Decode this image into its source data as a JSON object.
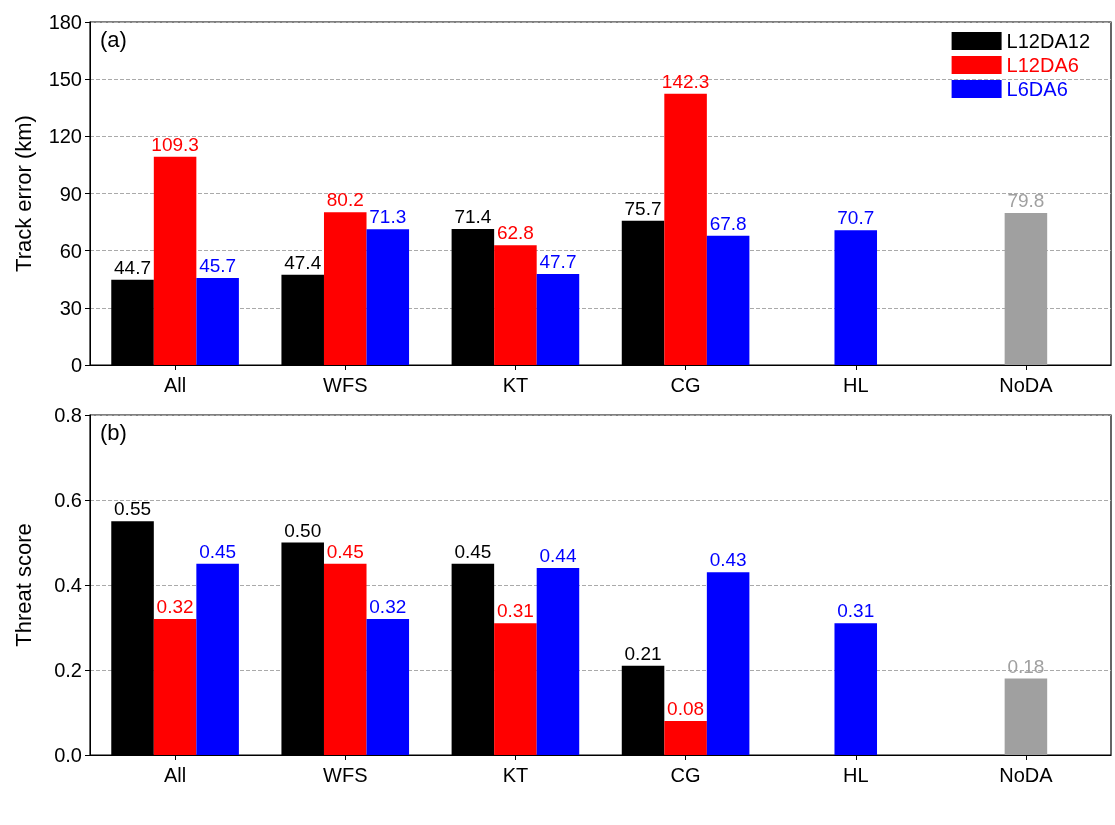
{
  "chart_data": [
    {
      "type": "bar",
      "ylabel": "Track error (km)",
      "annotations": [
        "(a)"
      ],
      "categories": [
        "All",
        "WFS",
        "KT",
        "CG",
        "HL",
        "NoDA"
      ],
      "series": [
        {
          "name": "L12DA12",
          "color": "#000000",
          "values": [
            44.7,
            47.4,
            71.4,
            75.7,
            null,
            null
          ]
        },
        {
          "name": "L12DA6",
          "color": "#ff0000",
          "values": [
            109.3,
            80.2,
            62.8,
            142.3,
            null,
            null
          ]
        },
        {
          "name": "L6DA6",
          "color": "#0000ff",
          "values": [
            45.7,
            71.3,
            47.7,
            67.8,
            70.7,
            null
          ]
        },
        {
          "color": "#a0a0a0",
          "values": [
            null,
            null,
            null,
            null,
            null,
            79.8
          ]
        }
      ],
      "ylim": [
        0,
        180
      ],
      "yticks": [
        0,
        30,
        60,
        90,
        120,
        150,
        180
      ],
      "grid": "y",
      "legend": "top right",
      "data_labels": true
    },
    {
      "type": "bar",
      "ylabel": "Threat score",
      "annotations": [
        "(b)"
      ],
      "categories": [
        "All",
        "WFS",
        "KT",
        "CG",
        "HL",
        "NoDA"
      ],
      "series": [
        {
          "color": "#000000",
          "values": [
            0.55,
            0.5,
            0.45,
            0.21,
            null,
            null
          ],
          "value_labels": [
            "0.55",
            "0.50",
            "0.45",
            "0.21",
            null,
            null
          ]
        },
        {
          "color": "#ff0000",
          "values": [
            0.32,
            0.45,
            0.31,
            0.08,
            null,
            null
          ],
          "value_labels": [
            "0.32",
            "0.45",
            "0.31",
            "0.08",
            null,
            null
          ]
        },
        {
          "color": "#0000ff",
          "values": [
            0.45,
            0.32,
            0.44,
            0.43,
            0.31,
            null
          ],
          "value_labels": [
            "0.45",
            "0.32",
            "0.44",
            "0.43",
            "0.31",
            null
          ]
        },
        {
          "color": "#a0a0a0",
          "values": [
            null,
            null,
            null,
            null,
            null,
            0.18
          ],
          "value_labels": [
            null,
            null,
            null,
            null,
            null,
            "0.18"
          ]
        }
      ],
      "ylim": [
        0,
        0.8
      ],
      "yticks": [
        {
          "value": 0,
          "label": "0.0"
        },
        0.2,
        0.4,
        0.6,
        0.8
      ],
      "grid": "y",
      "legend": false
    }
  ]
}
